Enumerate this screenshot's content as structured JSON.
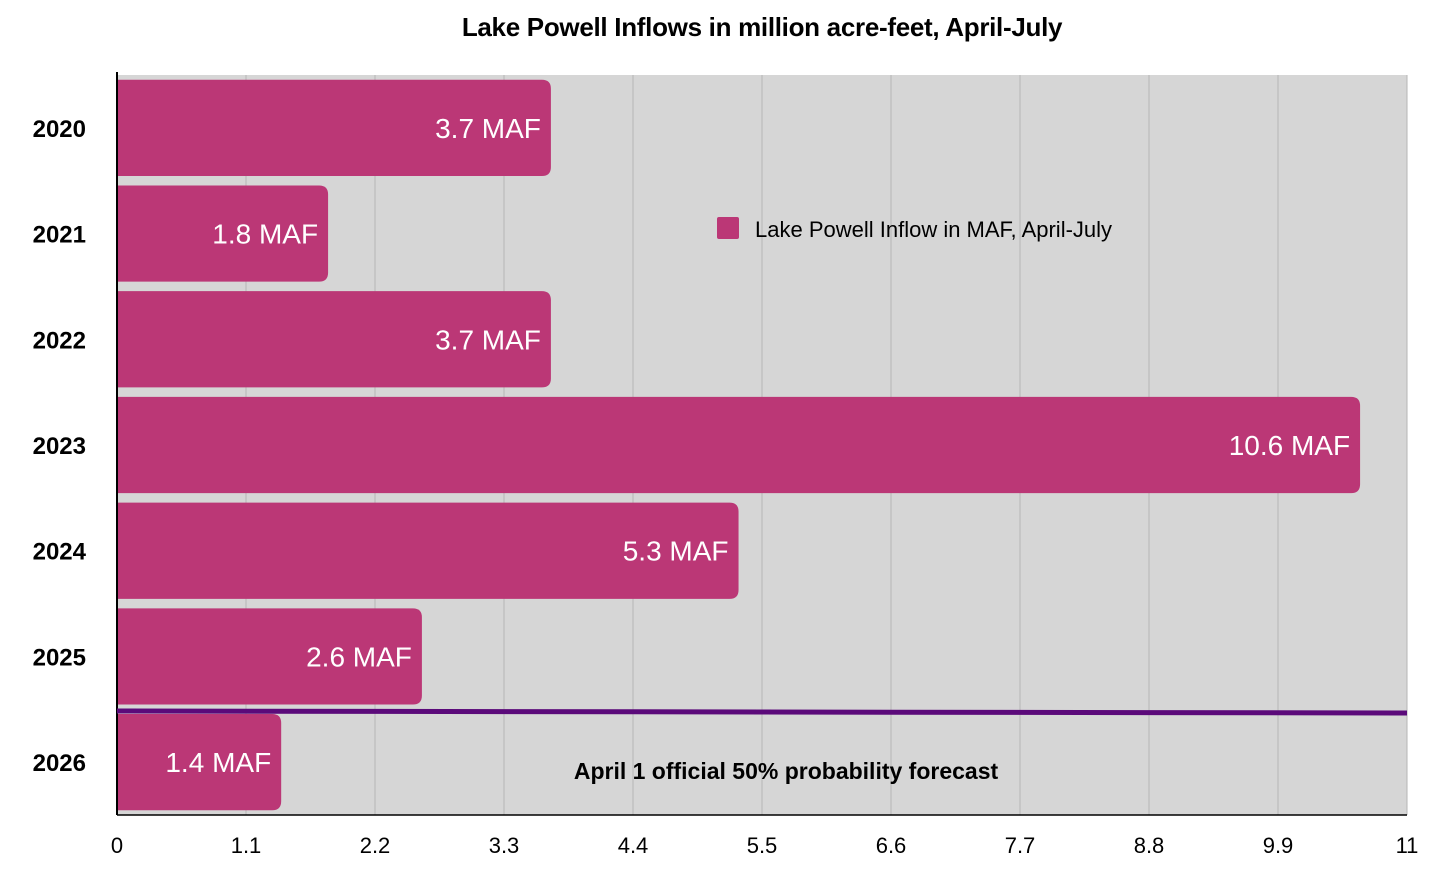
{
  "chart_data": {
    "type": "bar",
    "orientation": "horizontal",
    "title": "Lake Powell Inflows in million acre-feet, April-July",
    "categories": [
      "2020",
      "2021",
      "2022",
      "2023",
      "2024",
      "2025",
      "2026"
    ],
    "series": [
      {
        "name": "Lake Powell Inflow in MAF, April-July",
        "values": [
          3.7,
          1.8,
          3.7,
          10.6,
          5.3,
          2.6,
          1.4
        ],
        "data_labels": [
          "3.7 MAF",
          "1.8 MAF",
          "3.7 MAF",
          "10.6 MAF",
          "5.3 MAF",
          "2.6 MAF",
          "1.4 MAF"
        ],
        "color": "#bb3776"
      }
    ],
    "xlim": [
      0,
      11
    ],
    "xticks": [
      "0",
      "1.1",
      "2.2",
      "3.3",
      "4.4",
      "5.5",
      "6.6",
      "7.7",
      "8.8",
      "9.9",
      "11"
    ],
    "grid": "vertical",
    "legend_position": "upper-right",
    "annotation": {
      "text": "April 1 official 50% probability forecast",
      "color": "#5b0a7a"
    },
    "plot_background": "#d6d6d6"
  }
}
